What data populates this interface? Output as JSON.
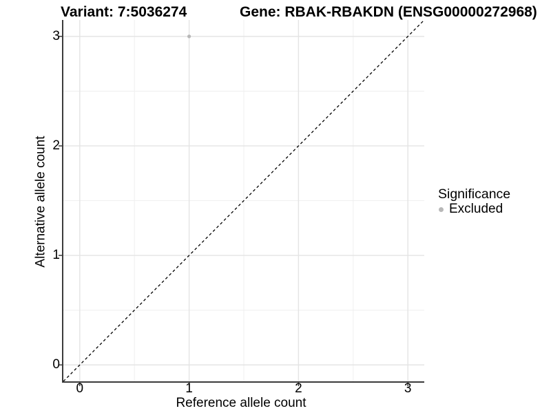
{
  "title": {
    "variant": "Variant: 7:5036274",
    "gene": "Gene: RBAK-RBAKDN (ENSG00000272968)"
  },
  "axes": {
    "x_label": "Reference allele count",
    "y_label": "Alternative allele count"
  },
  "legend": {
    "title": "Significance",
    "items": [
      {
        "label": "Excluded",
        "color": "#b8b8b8"
      }
    ]
  },
  "colors": {
    "background": "#ffffff",
    "grid_major": "#e4e4e4",
    "grid_minor": "#f0f0f0",
    "axis_line": "#3a3a3a",
    "tick_mark": "#3a3a3a",
    "reference_line": "#000000",
    "point": "#b8b8b8",
    "text": "#000000"
  },
  "chart_data": {
    "type": "scatter",
    "title": "Variant: 7:5036274   Gene: RBAK-RBAKDN (ENSG00000272968)",
    "xlabel": "Reference allele count",
    "ylabel": "Alternative allele count",
    "xlim": [
      -0.15,
      3.15
    ],
    "ylim": [
      -0.15,
      3.15
    ],
    "x_ticks": [
      0,
      1,
      2,
      3
    ],
    "y_ticks": [
      0,
      1,
      2,
      3
    ],
    "x_minor_ticks": [
      0.5,
      1.5,
      2.5
    ],
    "y_minor_ticks": [
      0.5,
      1.5,
      2.5
    ],
    "grid": "major-and-minor",
    "legend_position": "right",
    "reference_line": {
      "type": "identity",
      "slope": 1,
      "intercept": 0,
      "style": "dashed"
    },
    "series": [
      {
        "name": "Excluded",
        "color": "#b8b8b8",
        "points": [
          {
            "x": 1,
            "y": 3
          }
        ]
      }
    ]
  }
}
